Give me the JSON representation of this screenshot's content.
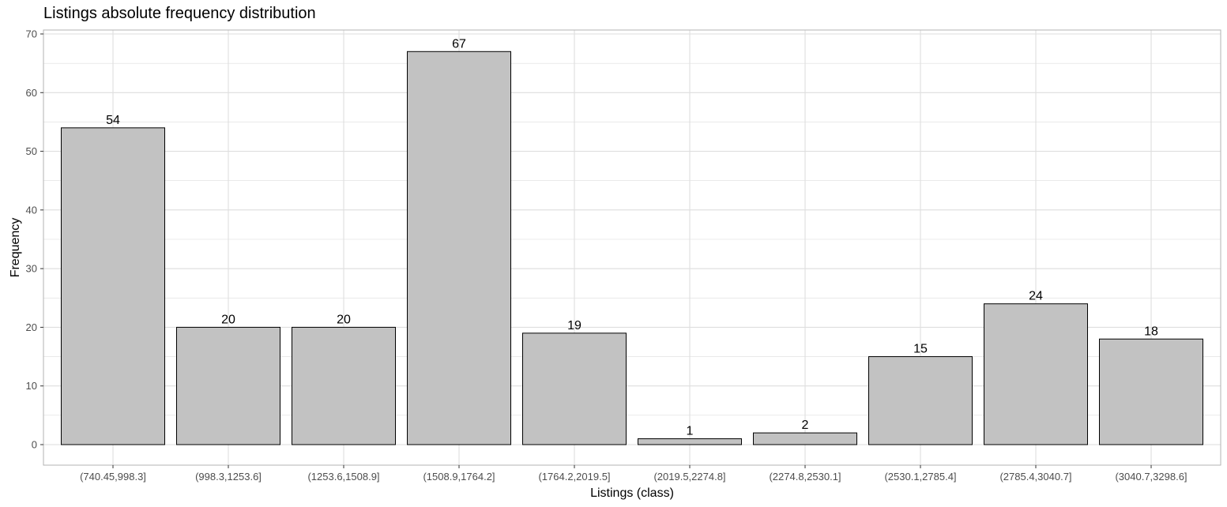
{
  "chart_data": {
    "type": "bar",
    "title": "Listings absolute frequency distribution",
    "xlabel": "Listings (class)",
    "ylabel": "Frequency",
    "categories": [
      "(740.45,998.3]",
      "(998.3,1253.6]",
      "(1253.6,1508.9]",
      "(1508.9,1764.2]",
      "(1764.2,2019.5]",
      "(2019.5,2274.8]",
      "(2274.8,2530.1]",
      "(2530.1,2785.4]",
      "(2785.4,3040.7]",
      "(3040.7,3298.6]"
    ],
    "values": [
      54,
      20,
      20,
      67,
      19,
      1,
      2,
      15,
      24,
      18
    ],
    "ylim": [
      0,
      70
    ],
    "yticks": [
      0,
      10,
      20,
      30,
      40,
      50,
      60,
      70
    ],
    "grid": true,
    "colors": {
      "bar_fill": "#c2c2c2",
      "bar_stroke": "#000000",
      "grid": "#dedede",
      "panel_border": "#b3b3b3"
    }
  }
}
